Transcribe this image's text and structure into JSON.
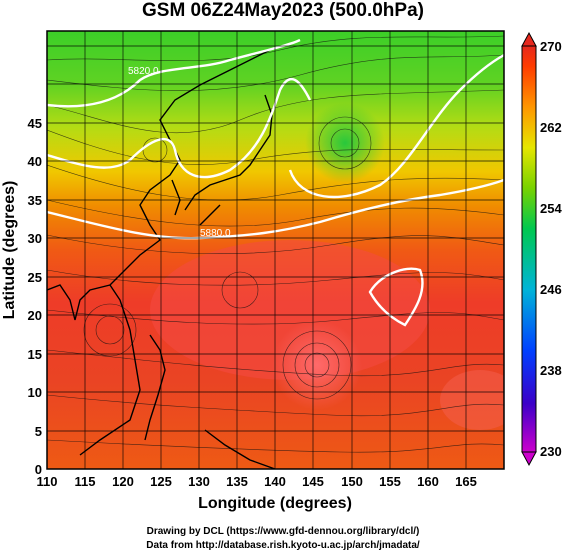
{
  "title": "GSM 06Z24May2023 (500.0hPa)",
  "map": {
    "x_axis": {
      "label": "Longitude (degrees)",
      "ticks": [
        "110",
        "115",
        "120",
        "125",
        "130",
        "135",
        "140",
        "145",
        "150",
        "155",
        "160",
        "165"
      ],
      "range": [
        110,
        170
      ]
    },
    "y_axis": {
      "label": "Latitude  (degrees)",
      "ticks": [
        "0",
        "5",
        "10",
        "15",
        "20",
        "25",
        "30",
        "35",
        "40",
        "45"
      ],
      "range": [
        0,
        50
      ]
    },
    "contour_labels": [
      "5820.0",
      "5880.0"
    ],
    "grid": true
  },
  "colorbar": {
    "ticks": [
      "270",
      "262",
      "254",
      "246",
      "238",
      "230"
    ],
    "range": [
      230,
      270
    ],
    "colors": [
      "#cc00cc",
      "#3b00c8",
      "#0040ff",
      "#00b4d8",
      "#00c850",
      "#78d200",
      "#e6e600",
      "#ff9600",
      "#ff3c00",
      "#e6281e"
    ]
  },
  "footer": {
    "line1": "Drawing by DCL (https://www.gfd-dennou.org/library/dcl/)",
    "line2": "Data from http://database.rish.kyoto-u.ac.jp/arch/jmadata/"
  }
}
